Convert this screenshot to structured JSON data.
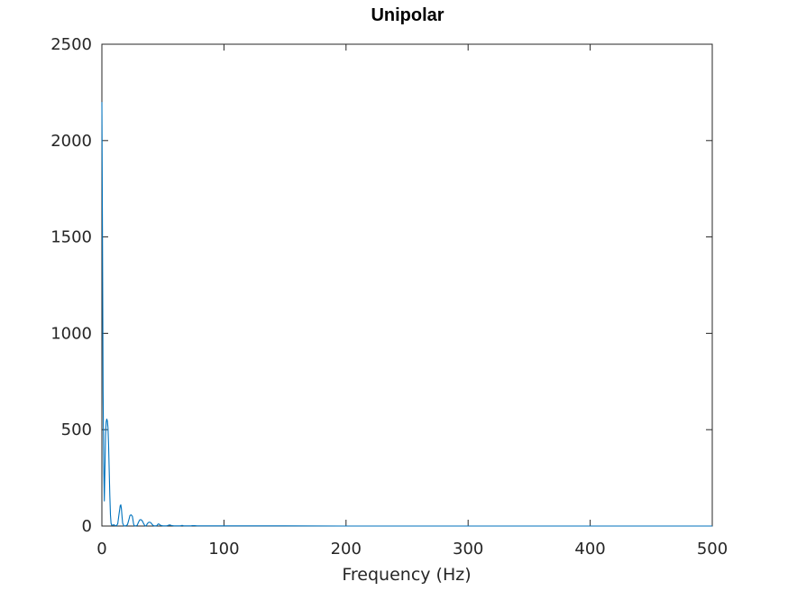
{
  "chart_data": {
    "type": "line",
    "title": "Unipolar",
    "xlabel": "Frequency (Hz)",
    "ylabel": "",
    "xlim": [
      0,
      500
    ],
    "ylim": [
      0,
      2500
    ],
    "xticks": [
      0,
      100,
      200,
      300,
      400,
      500
    ],
    "yticks": [
      0,
      500,
      1000,
      1500,
      2000,
      2500
    ],
    "grid": false,
    "color": "#0072BD",
    "series": [
      {
        "x": [
          0,
          0.5,
          1,
          1.5,
          2,
          2.5,
          3,
          3.5,
          4,
          4.5,
          5,
          5.5,
          6,
          6.5,
          7,
          7.5,
          8,
          8.5,
          9,
          9.5,
          10,
          10.5,
          11,
          12,
          13,
          14,
          15,
          15.5,
          16,
          16.5,
          17,
          18,
          19,
          20,
          21,
          22,
          23,
          24,
          25,
          25.5,
          26,
          26.5,
          27,
          28,
          29,
          30,
          31,
          32,
          33,
          34,
          35,
          35.5,
          36,
          36.5,
          37,
          38,
          39,
          40,
          41,
          42,
          43,
          44,
          45,
          45.5,
          46,
          46.5,
          47,
          48,
          50,
          52,
          53,
          54,
          55,
          55.5,
          56,
          57,
          59,
          62,
          64,
          65,
          65.5,
          66,
          67,
          70,
          73,
          74,
          75,
          76,
          78,
          82,
          85,
          86,
          87,
          90,
          95,
          100,
          105,
          106,
          107,
          110,
          115,
          120,
          125,
          126,
          127,
          130,
          140,
          150,
          200,
          250,
          300,
          350,
          400,
          450,
          500
        ],
        "y": [
          2200,
          1500,
          700,
          320,
          130,
          300,
          470,
          540,
          555,
          545,
          510,
          420,
          290,
          160,
          60,
          15,
          5,
          4,
          5,
          6,
          6,
          4,
          2,
          2,
          12,
          60,
          105,
          110,
          90,
          50,
          15,
          1,
          1,
          2,
          8,
          30,
          55,
          58,
          50,
          30,
          10,
          2,
          1,
          1,
          5,
          20,
          32,
          33,
          28,
          15,
          4,
          1,
          1,
          3,
          10,
          18,
          20,
          18,
          10,
          3,
          1,
          1,
          2,
          6,
          10,
          11,
          9,
          4,
          1,
          1,
          1,
          3,
          5,
          6,
          5,
          3,
          1,
          1,
          1,
          2,
          3,
          3,
          1,
          1,
          1,
          2,
          2,
          2,
          1,
          1,
          1,
          1,
          1,
          1,
          1,
          1,
          1,
          1,
          1,
          1,
          1,
          1,
          1,
          1,
          1,
          1,
          1,
          1,
          0,
          0,
          0,
          0,
          0,
          0,
          0
        ]
      }
    ]
  }
}
